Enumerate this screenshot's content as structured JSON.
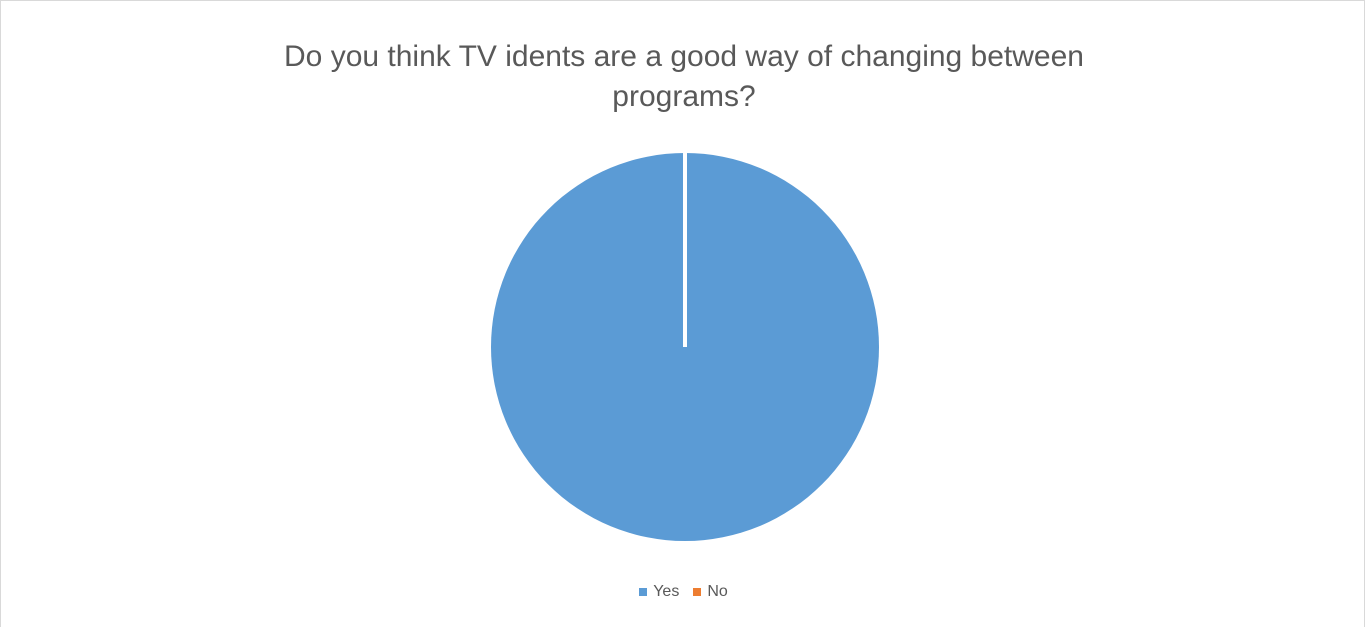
{
  "chart_data": {
    "type": "pie",
    "title": "Do you think TV idents are a good way of changing between programs?",
    "categories": [
      "Yes",
      "No"
    ],
    "values": [
      100,
      0
    ],
    "colors": [
      "#5b9bd5",
      "#ed7d31"
    ],
    "legend_position": "bottom"
  }
}
